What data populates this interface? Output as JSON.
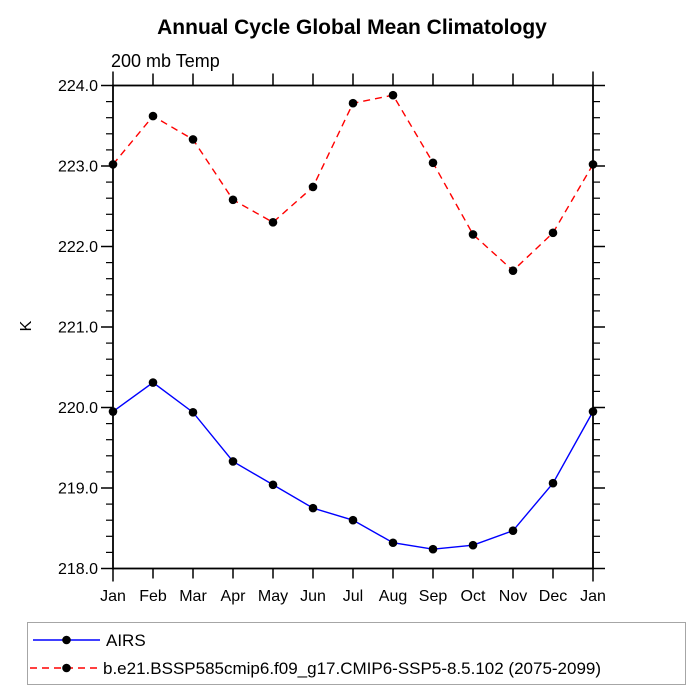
{
  "chart_data": {
    "type": "line",
    "title": "Annual Cycle Global Mean Climatology",
    "subtitle": "200 mb Temp",
    "ylabel": "K",
    "categories": [
      "Jan",
      "Feb",
      "Mar",
      "Apr",
      "May",
      "Jun",
      "Jul",
      "Aug",
      "Sep",
      "Oct",
      "Nov",
      "Dec",
      "Jan"
    ],
    "ylim": [
      218.0,
      224.0
    ],
    "ytick_labels": [
      "218.0",
      "219.0",
      "220.0",
      "221.0",
      "222.0",
      "223.0",
      "224.0"
    ],
    "ytick_minor_step": 0.2,
    "grid": false,
    "legend_position": "bottom-left-box",
    "series": [
      {
        "name": "AIRS",
        "color": "#0000ff",
        "line_style": "solid",
        "marker": "filled-circle",
        "marker_color": "#000000",
        "values": [
          219.95,
          220.31,
          219.94,
          219.33,
          219.04,
          218.75,
          218.6,
          218.32,
          218.24,
          218.29,
          218.47,
          219.06,
          219.95
        ]
      },
      {
        "name": "b.e21.BSSP585cmip6.f09_g17.CMIP6-SSP5-8.5.102 (2075-2099)",
        "color": "#ff0000",
        "line_style": "dashed",
        "marker": "filled-circle",
        "marker_color": "#000000",
        "values": [
          223.02,
          223.62,
          223.33,
          222.58,
          222.3,
          222.74,
          223.78,
          223.88,
          223.04,
          222.15,
          221.7,
          222.17,
          223.02
        ]
      }
    ]
  }
}
